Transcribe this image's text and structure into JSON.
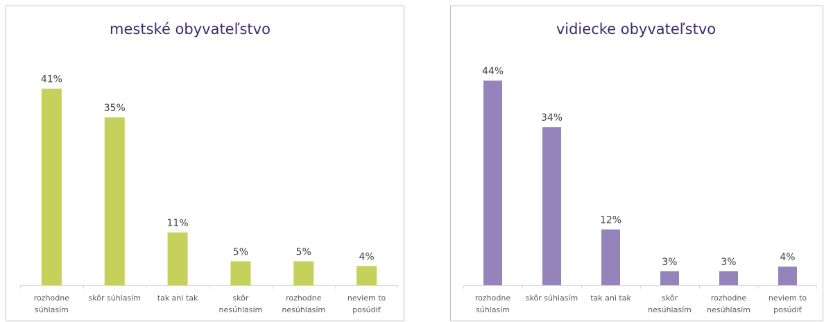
{
  "chart_data": [
    {
      "type": "bar",
      "title": "mestské obyvateľstvo",
      "categories": [
        [
          "rozhodne",
          "súhlasím"
        ],
        [
          "skôr súhlasím"
        ],
        [
          "tak ani tak"
        ],
        [
          "skôr",
          "nesúhlasím"
        ],
        [
          "rozhodne",
          "nesúhlasím"
        ],
        [
          "neviem to",
          "posúdiť"
        ]
      ],
      "values": [
        41,
        35,
        11,
        5,
        5,
        4
      ],
      "value_labels": [
        "41%",
        "35%",
        "11%",
        "5%",
        "5%",
        "4%"
      ],
      "color": "#c5d15a",
      "ylim": [
        0,
        45
      ],
      "grid": false
    },
    {
      "type": "bar",
      "title": "vidiecke obyvateľstvo",
      "categories": [
        [
          "rozhodne",
          "súhlasím"
        ],
        [
          "skôr súhlasím"
        ],
        [
          "tak ani tak"
        ],
        [
          "skôr",
          "nesúhlasím"
        ],
        [
          "rozhodne",
          "nesúhlasím"
        ],
        [
          "neviem to",
          "posúdiť"
        ]
      ],
      "values": [
        44,
        34,
        12,
        3,
        3,
        4
      ],
      "value_labels": [
        "44%",
        "34%",
        "12%",
        "3%",
        "3%",
        "4%"
      ],
      "color": "#9484bb",
      "ylim": [
        0,
        48
      ],
      "grid": false
    }
  ]
}
